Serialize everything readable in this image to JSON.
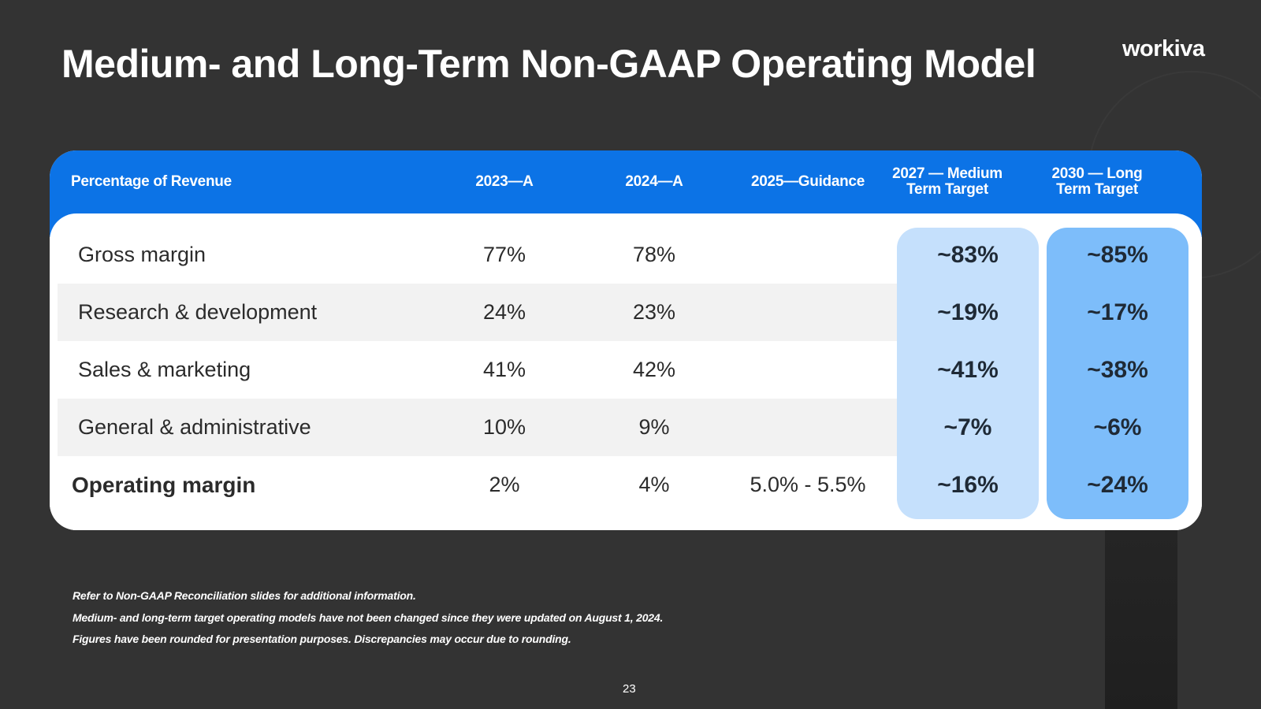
{
  "slide": {
    "title": "Medium- and Long-Term Non-GAAP Operating Model",
    "logo": "workiva",
    "page_number": "23"
  },
  "table": {
    "headers": [
      "Percentage of Revenue",
      "2023—A",
      "2024—A",
      "2025—Guidance",
      "2027 — Medium Term Target",
      "2030 — Long Term Target"
    ],
    "rows": [
      {
        "label": "Gross margin",
        "c2023": "77%",
        "c2024": "78%",
        "c2025": "",
        "t2027": "~83%",
        "t2030": "~85%"
      },
      {
        "label": "Research & development",
        "c2023": "24%",
        "c2024": "23%",
        "c2025": "",
        "t2027": "~19%",
        "t2030": "~17%"
      },
      {
        "label": "Sales & marketing",
        "c2023": "41%",
        "c2024": "42%",
        "c2025": "",
        "t2027": "~41%",
        "t2030": "~38%"
      },
      {
        "label": "General & administrative",
        "c2023": "10%",
        "c2024": "9%",
        "c2025": "",
        "t2027": "~7%",
        "t2030": "~6%"
      },
      {
        "label": "Operating margin",
        "c2023": "2%",
        "c2024": "4%",
        "c2025": "5.0% - 5.5%",
        "t2027": "~16%",
        "t2030": "~24%"
      }
    ]
  },
  "footnotes": [
    "Refer to Non-GAAP Reconciliation slides for additional information.",
    "Medium- and long-term target operating models have not been changed since they were updated on August 1, 2024.",
    "Figures have been rounded for presentation purposes. Discrepancies may occur due to rounding."
  ],
  "colors": {
    "background": "#333333",
    "header_blue": "#0c73e6",
    "medium_target_fill": "#c5e0fc",
    "long_target_fill": "#7dbdfa",
    "stripe": "#f2f2f2"
  }
}
